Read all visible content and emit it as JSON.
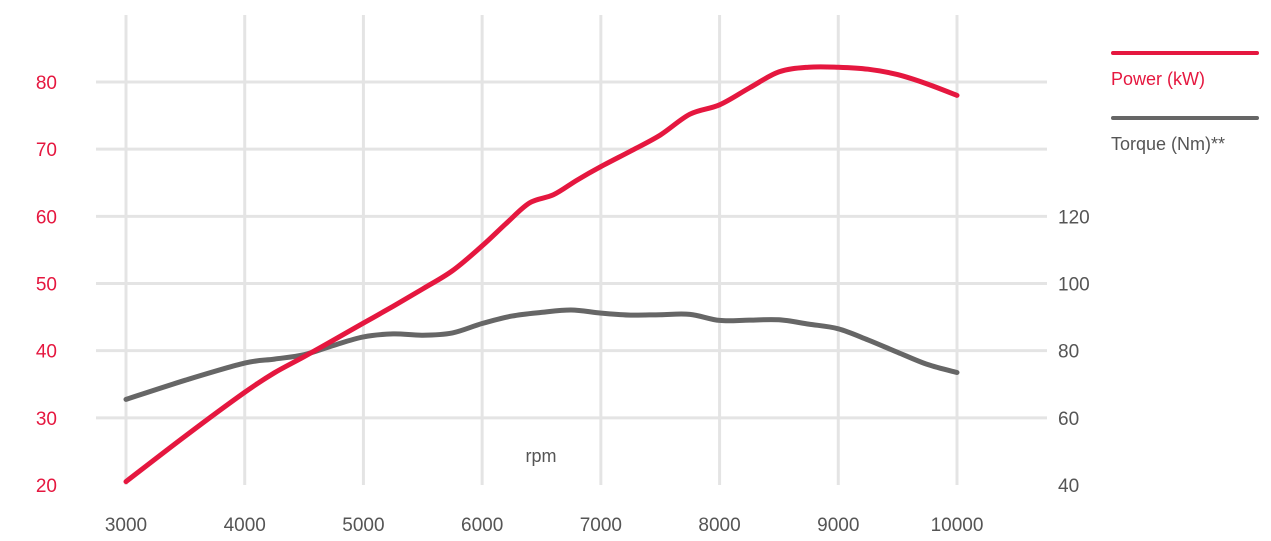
{
  "chart_data": {
    "type": "line",
    "xlabel": "rpm",
    "x_ticks": [
      3000,
      4000,
      5000,
      6000,
      7000,
      8000,
      9000,
      10000
    ],
    "xlim": [
      3000,
      10000
    ],
    "y_left": {
      "ticks": [
        20,
        30,
        40,
        50,
        60,
        70,
        80
      ],
      "lim": [
        20,
        80
      ],
      "color": "#e5173f"
    },
    "y_right": {
      "ticks": [
        40,
        60,
        80,
        100,
        120
      ],
      "lim": [
        40,
        160
      ],
      "color": "#555555"
    },
    "grid": true,
    "legend_position": "top-right",
    "series": [
      {
        "name": "Power (kW)",
        "axis": "left",
        "color": "#e5173f",
        "x": [
          3000,
          3500,
          4000,
          4250,
          4500,
          4750,
          5000,
          5250,
          5500,
          5750,
          6000,
          6200,
          6400,
          6600,
          6800,
          7000,
          7250,
          7500,
          7750,
          8000,
          8250,
          8500,
          8750,
          9000,
          9250,
          9500,
          9750,
          10000
        ],
        "y": [
          20.5,
          27.3,
          33.8,
          36.7,
          39.1,
          41.6,
          44.1,
          46.6,
          49.2,
          51.9,
          55.6,
          58.9,
          62.0,
          63.2,
          65.4,
          67.4,
          69.7,
          72.1,
          75.2,
          76.6,
          79.1,
          81.5,
          82.2,
          82.2,
          81.9,
          81.1,
          79.7,
          78.0
        ]
      },
      {
        "name": "Torque (Nm)**",
        "axis": "right",
        "color": "#666666",
        "x": [
          3000,
          3500,
          4000,
          4250,
          4500,
          4750,
          5000,
          5250,
          5500,
          5750,
          6000,
          6250,
          6500,
          6750,
          7000,
          7250,
          7500,
          7750,
          8000,
          8250,
          8500,
          8750,
          9000,
          9250,
          9500,
          9750,
          10000
        ],
        "y": [
          65.5,
          71.2,
          76.3,
          77.5,
          78.8,
          81.6,
          84.1,
          85.0,
          84.6,
          85.3,
          88.1,
          90.3,
          91.4,
          92.1,
          91.2,
          90.6,
          90.7,
          90.8,
          89.0,
          89.1,
          89.2,
          87.9,
          86.5,
          83.2,
          79.5,
          75.9,
          73.5
        ]
      }
    ]
  }
}
